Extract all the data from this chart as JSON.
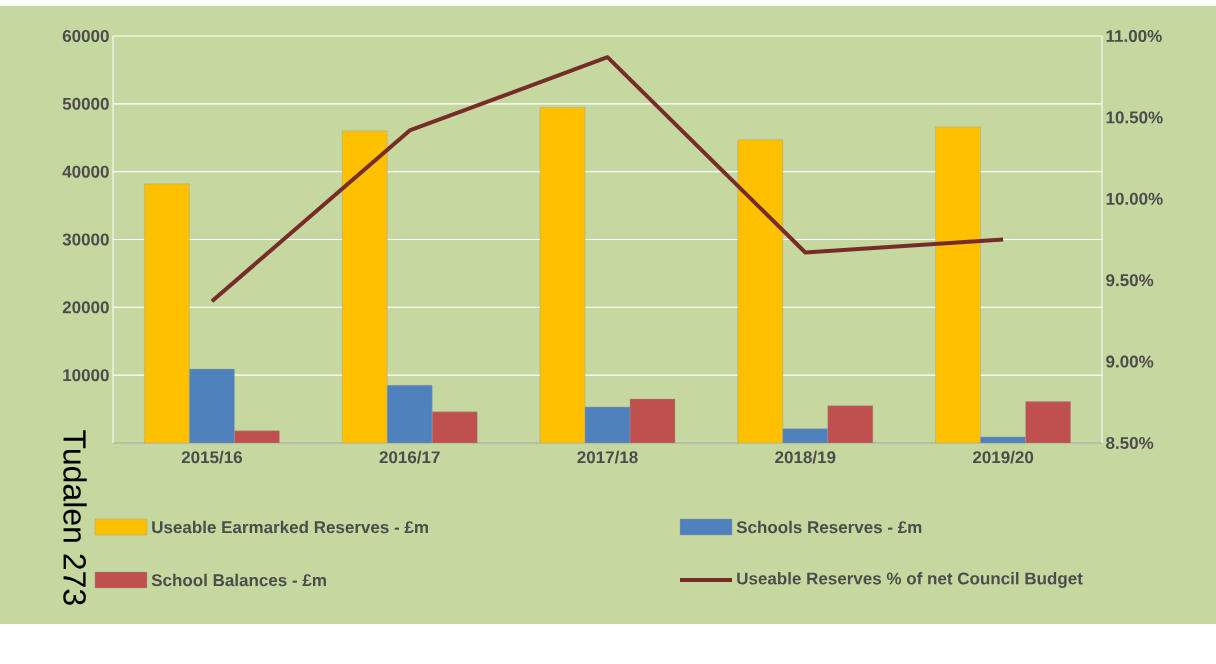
{
  "chart_data": {
    "type": "bar",
    "categories": [
      "2015/16",
      "2016/17",
      "2017/18",
      "2018/19",
      "2019/20"
    ],
    "series": [
      {
        "name": "Useable Earmarked Reserves - £m",
        "color": "#ffc000",
        "values": [
          38200,
          46000,
          49500,
          44700,
          46600
        ]
      },
      {
        "name": "Schools Reserves - £m",
        "color": "#4f81bd",
        "values": [
          10900,
          8500,
          5300,
          2100,
          900
        ]
      },
      {
        "name": "School Balances - £m",
        "color": "#c0504d",
        "values": [
          1800,
          4600,
          6500,
          5500,
          6100
        ]
      },
      {
        "name": "Useable Reserves % of net Council Budget",
        "type": "line",
        "axis": "y2",
        "color": "#772c2a",
        "values": [
          9.37,
          10.42,
          10.87,
          9.67,
          9.75
        ]
      }
    ],
    "ylim": [
      0,
      60000
    ],
    "yticks": [
      10000,
      20000,
      30000,
      40000,
      50000,
      60000
    ],
    "y2lim": [
      8.5,
      11
    ],
    "y2ticks": [
      {
        "value": 8.5,
        "label": "8.50%"
      },
      {
        "value": 9,
        "label": "9.00%"
      },
      {
        "value": 9.5,
        "label": "9.50%"
      },
      {
        "value": 10,
        "label": "10.00%"
      },
      {
        "value": 10.5,
        "label": "10.50%"
      },
      {
        "value": 11,
        "label": "11.00%"
      }
    ],
    "grid": "y",
    "legend": "bottom",
    "annotations": [
      "Tudalen 273"
    ]
  }
}
